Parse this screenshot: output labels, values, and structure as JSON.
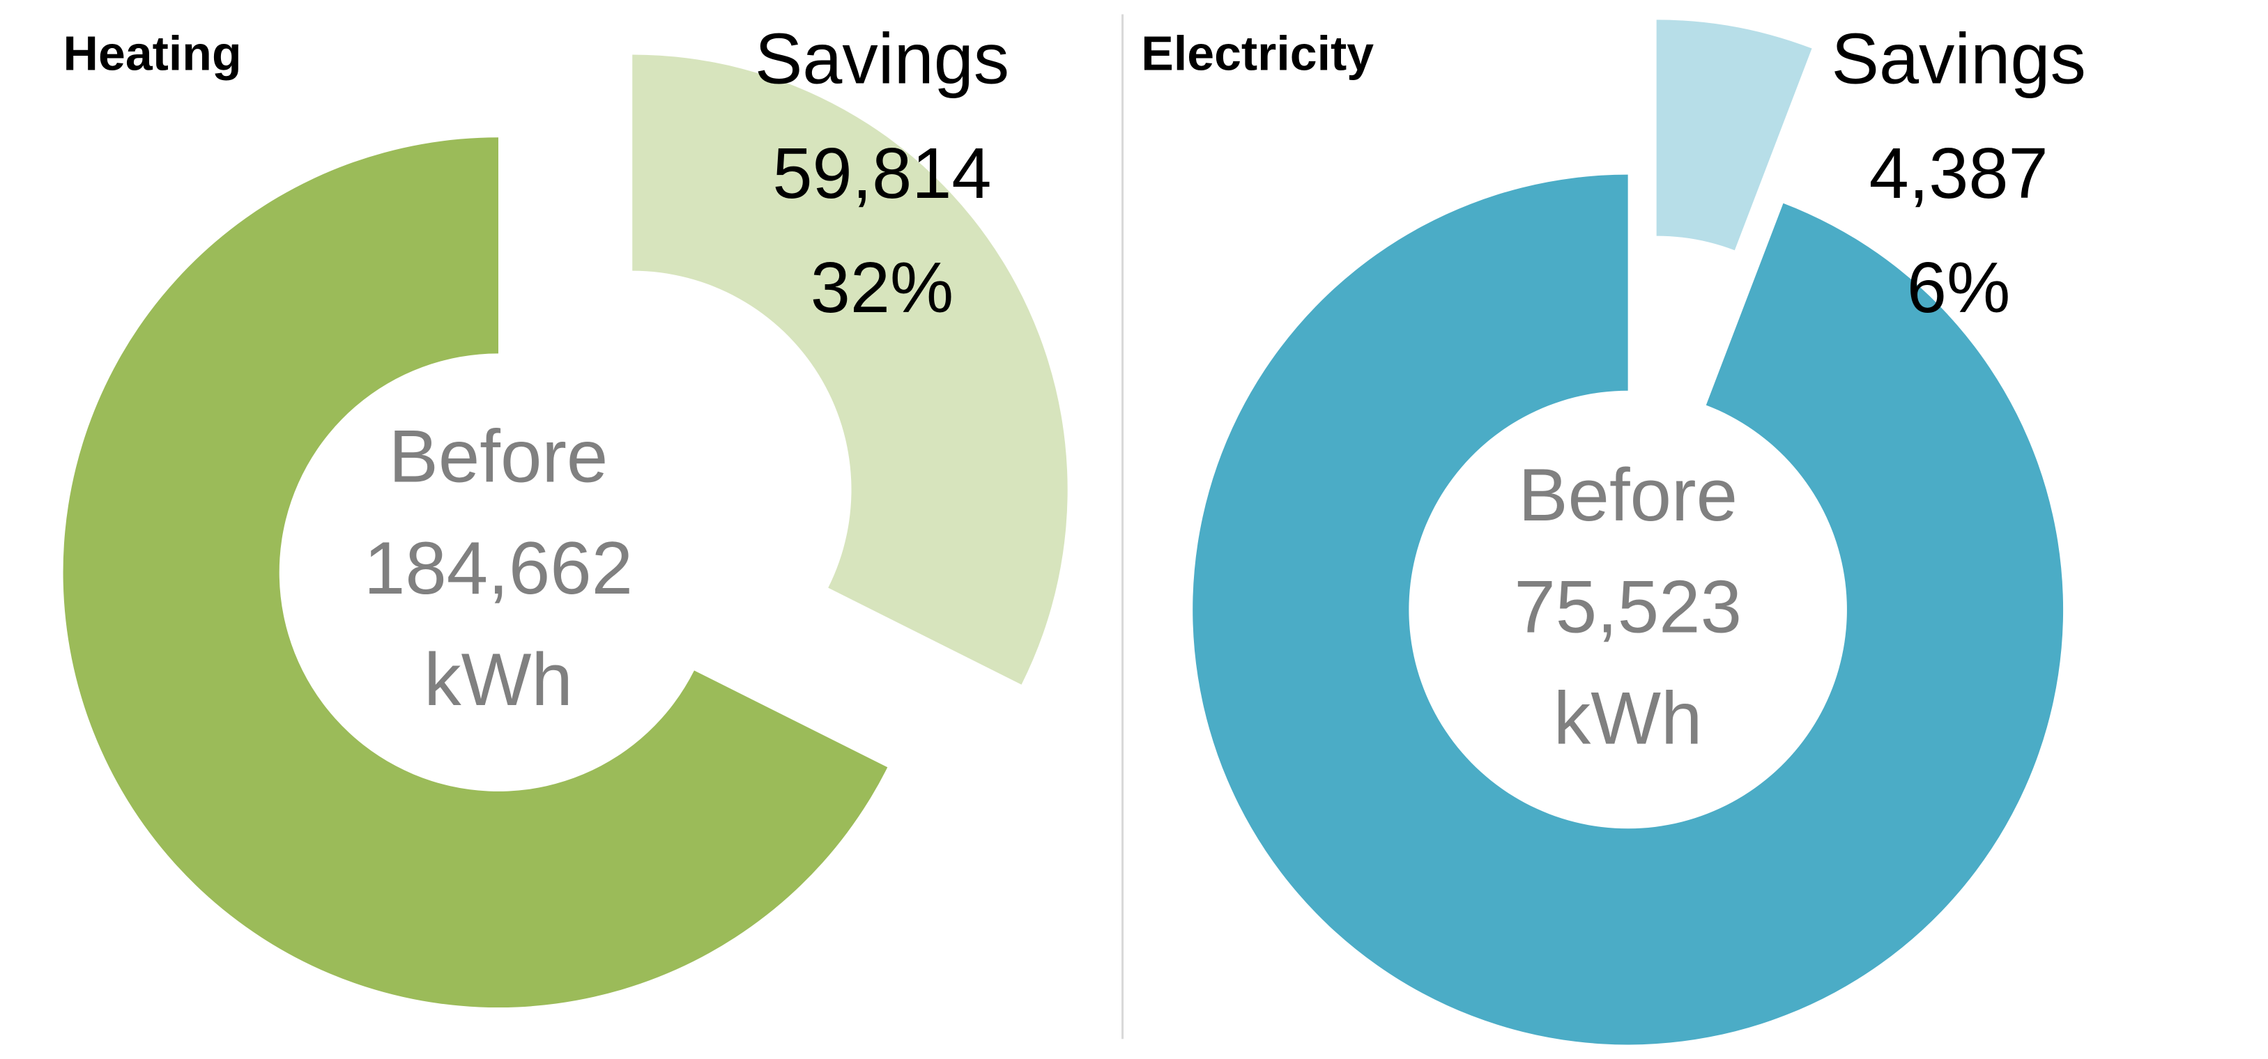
{
  "chart_data": [
    {
      "type": "donut",
      "title": "Heating",
      "center": {
        "name": "Before",
        "value": 184662,
        "value_label": "184,662",
        "unit": "kWh",
        "color": "#9bbb59"
      },
      "savings": {
        "name": "Savings",
        "value": 59814,
        "value_label": "59,814",
        "percent": 32,
        "percent_label": "32%",
        "color": "#d7e4bd"
      }
    },
    {
      "type": "donut",
      "title": "Electricity",
      "center": {
        "name": "Before",
        "value": 75523,
        "value_label": "75,523",
        "unit": "kWh",
        "color": "#4bacc6"
      },
      "savings": {
        "name": "Savings",
        "value": 4387,
        "value_label": "4,387",
        "percent": 6,
        "percent_label": "6%",
        "color": "#b7dee8"
      }
    }
  ]
}
